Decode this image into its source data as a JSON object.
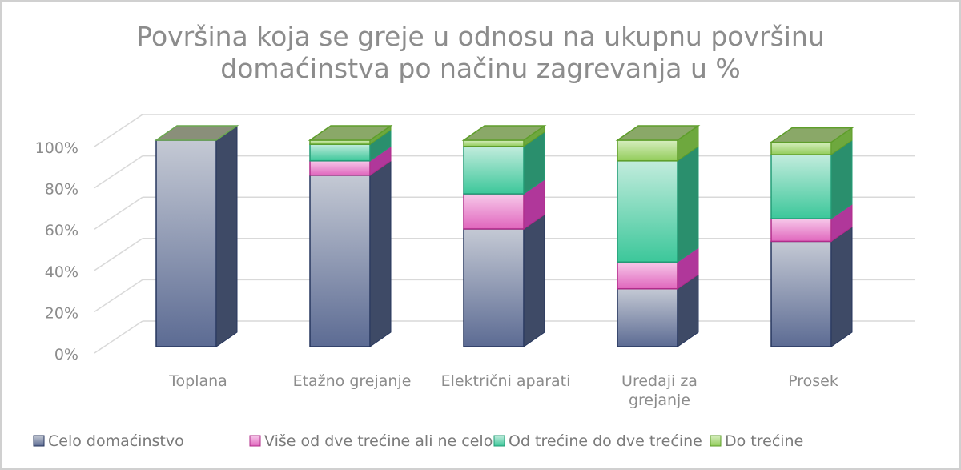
{
  "chart_data": {
    "type": "bar",
    "stacked": true,
    "three_d": true,
    "title_lines": [
      "Površina koja se greje u odnosu na ukupnu površinu",
      "domaćinstva po načinu zagrevanja u %"
    ],
    "categories": [
      "Toplana",
      "Etažno grejanje",
      "Električni aparati",
      "Uređaji za grejanje",
      "Prosek"
    ],
    "category_lines": [
      [
        "Toplana"
      ],
      [
        "Etažno grejanje"
      ],
      [
        "Električni aparati"
      ],
      [
        "Uređaji za",
        "grejanje"
      ],
      [
        "Prosek"
      ]
    ],
    "series": [
      {
        "name": "Celo domaćinstvo",
        "values": [
          100,
          83,
          57,
          28,
          51
        ],
        "color": "#6e7ea3"
      },
      {
        "name": "Više od dve trećine ali ne celo",
        "values": [
          0,
          7,
          17,
          13,
          11
        ],
        "color": "#e67fca"
      },
      {
        "name": "Od trećine do dve trećine",
        "values": [
          0,
          8,
          23,
          49,
          31
        ],
        "color": "#4dcfa6"
      },
      {
        "name": "Do trećine",
        "values": [
          0,
          2,
          3,
          10,
          6
        ],
        "color": "#9fd46a"
      }
    ],
    "y_ticks": [
      "0%",
      "20%",
      "40%",
      "60%",
      "80%",
      "100%"
    ],
    "ylim": [
      0,
      100
    ],
    "grid": true,
    "legend_position": "bottom"
  }
}
